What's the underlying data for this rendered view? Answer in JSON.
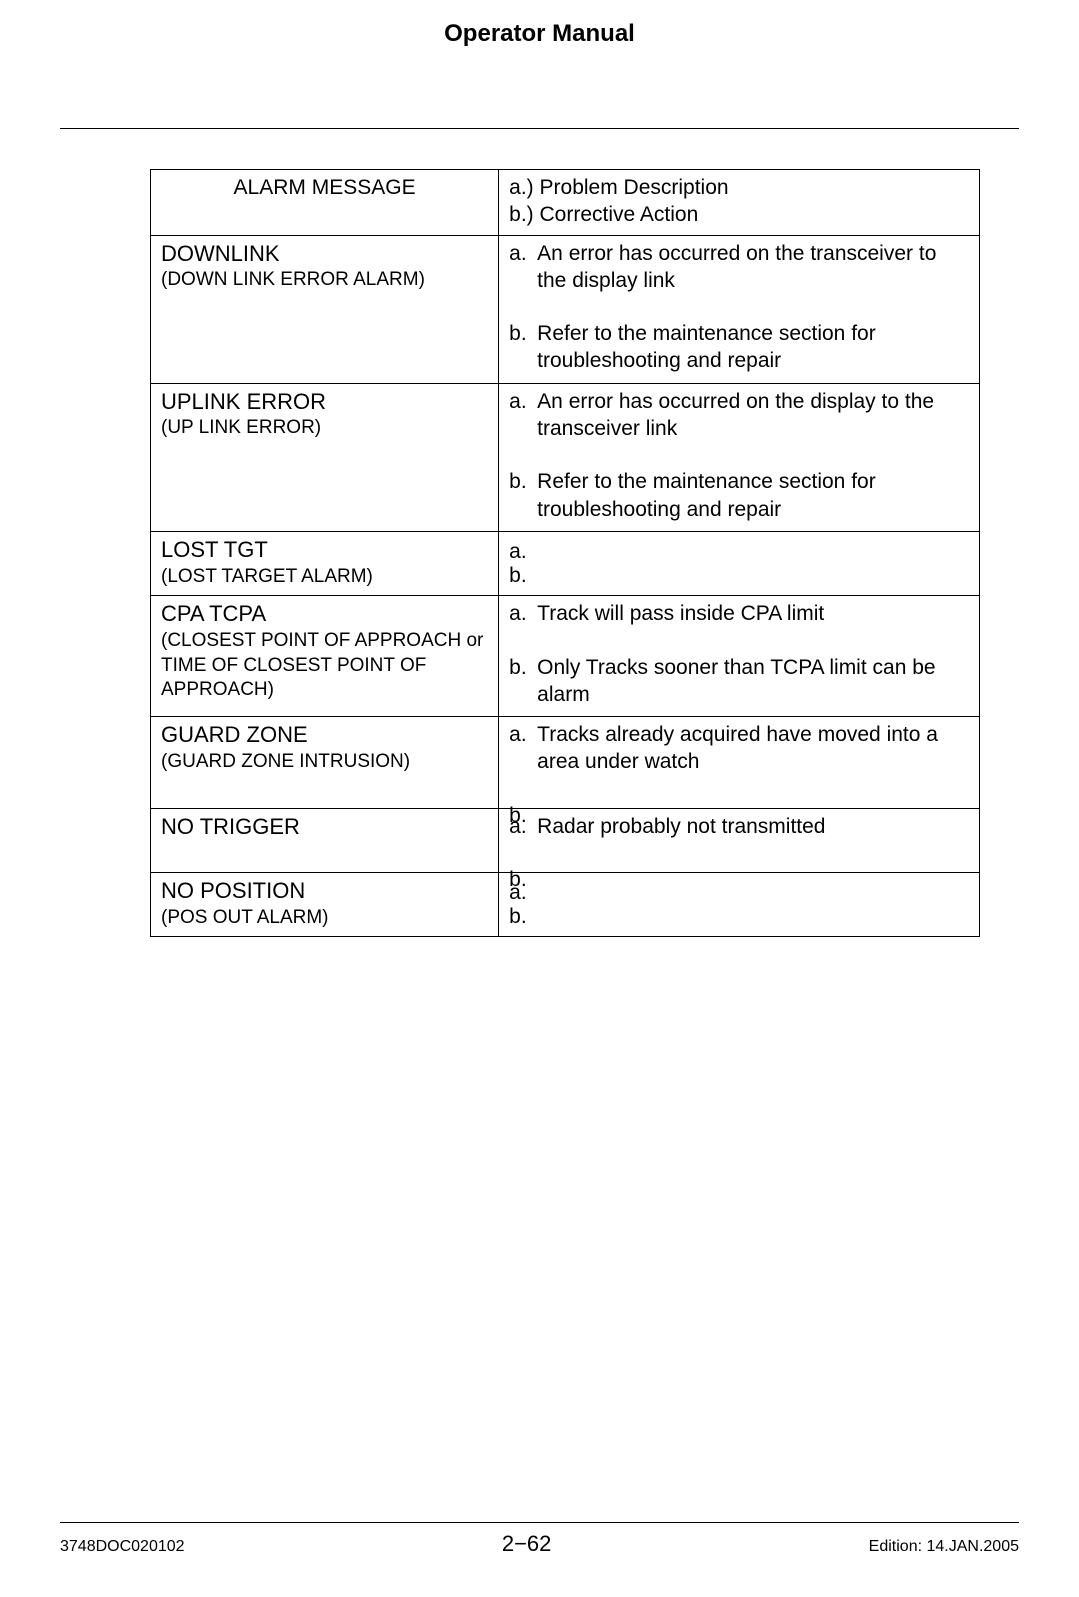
{
  "document": {
    "title": "Operator Manual",
    "footer_doc_id": "3748DOC020102",
    "footer_page": "2−62",
    "footer_edition": "Edition: 14.JAN.2005"
  },
  "table": {
    "header": {
      "left": "ALARM MESSAGE",
      "right_a": "a.) Problem Description",
      "right_b": "b.) Corrective Action"
    },
    "rows": [
      {
        "alarm_main": "DOWNLINK",
        "alarm_sub": "(DOWN LINK ERROR ALARM)",
        "a": "An error has occurred on the transceiver to the display link",
        "b": "Refer to the maintenance section for troubleshooting and repair"
      },
      {
        "alarm_main": "UPLINK ERROR",
        "alarm_sub": "(UP LINK ERROR)",
        "a": "An error has occurred on the display to the transceiver link",
        "b": "Refer to the maintenance section for troubleshooting and repair"
      },
      {
        "alarm_main": "LOST TGT",
        "alarm_sub": "(LOST TARGET ALARM)",
        "a": "",
        "b": ""
      },
      {
        "alarm_main": "CPA TCPA",
        "alarm_sub": "(CLOSEST POINT OF APPROACH or TIME OF CLOSEST POINT OF APPROACH)",
        "a": "Track will pass inside CPA limit",
        "b": "Only Tracks sooner than TCPA limit can be alarm"
      },
      {
        "alarm_main": "GUARD ZONE",
        "alarm_sub": "(GUARD ZONE INTRUSION)",
        "a": "Tracks already acquired have moved into a area under watch",
        "b": ""
      },
      {
        "alarm_main": "NO TRIGGER",
        "alarm_sub": "",
        "a": "Radar probably not transmitted",
        "b": ""
      },
      {
        "alarm_main": "NO POSITION",
        "alarm_sub": "(POS OUT ALARM)",
        "a": "",
        "b": ""
      }
    ]
  }
}
